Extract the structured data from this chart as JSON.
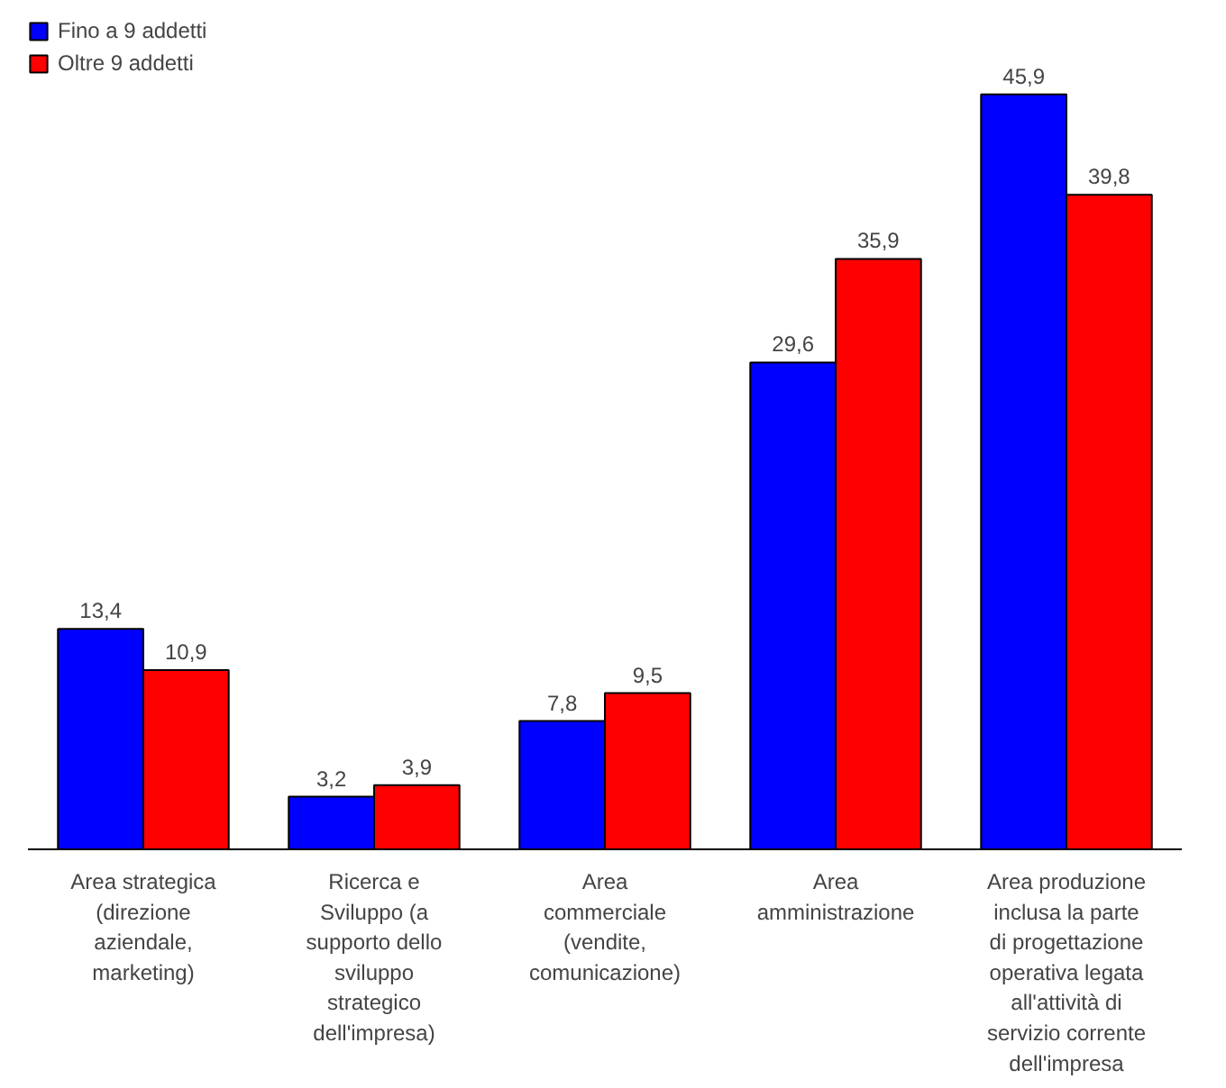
{
  "chart_data": {
    "type": "bar",
    "categories": [
      "Area strategica\n(direzione\naziendale,\nmarketing)",
      "Ricerca e\nSviluppo (a\nsupporto dello\nsviluppo\nstrategico\ndell'impresa)",
      "Area\ncommerciale\n(vendite,\ncomunicazione)",
      "Area\namministrazione",
      "Area produzione\ninclusa la parte\ndi progettazione\noperativa legata\nall'attività di\nservizio corrente\ndell'impresa"
    ],
    "series": [
      {
        "name": "Fino a 9 addetti",
        "color": "#0000ff",
        "values": [
          13.4,
          3.2,
          7.8,
          29.6,
          45.9
        ],
        "value_labels": [
          "13,4",
          "3,2",
          "7,8",
          "29,6",
          "45,9"
        ]
      },
      {
        "name": "Oltre 9 addetti",
        "color": "#ff0000",
        "values": [
          10.9,
          3.9,
          9.5,
          35.9,
          39.8
        ],
        "value_labels": [
          "10,9",
          "3,9",
          "9,5",
          "35,9",
          "39,8"
        ]
      }
    ],
    "legend": "top left",
    "grid": false
  }
}
